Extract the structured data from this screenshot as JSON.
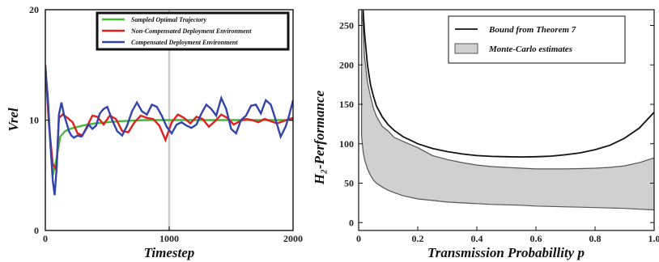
{
  "chart_data": [
    {
      "type": "line",
      "xlabel": "Timestep",
      "ylabel": "Vrel",
      "xlim": [
        0,
        2000
      ],
      "ylim": [
        0,
        20
      ],
      "x_ticks": [
        "0",
        "1000",
        "2000"
      ],
      "y_ticks": [
        "0",
        "10",
        "20"
      ],
      "grid": false,
      "reference_line_x": 1000,
      "legend": "top",
      "colors": {
        "optimal": "#44bb33",
        "noncomp": "#e02020",
        "comp": "#3344aa",
        "refline": "#cccccc"
      },
      "series": [
        {
          "name": "Sampled Optimal Trajectory",
          "x": [
            0,
            30,
            60,
            90,
            120,
            160,
            200,
            300,
            400,
            500,
            600,
            700,
            800,
            1000,
            1200,
            1400,
            1600,
            1800,
            2000
          ],
          "y": [
            15,
            9.5,
            5,
            6.5,
            8.5,
            9.0,
            9.2,
            9.5,
            9.7,
            9.8,
            9.9,
            9.95,
            10.0,
            10.0,
            10.0,
            10.0,
            10.0,
            10.0,
            10.0
          ]
        },
        {
          "name": "Non-Compensated Deployment Environment",
          "x": [
            0,
            30,
            60,
            90,
            110,
            140,
            180,
            220,
            260,
            300,
            340,
            380,
            420,
            470,
            520,
            570,
            620,
            670,
            720,
            770,
            820,
            870,
            920,
            970,
            1020,
            1070,
            1120,
            1170,
            1220,
            1270,
            1320,
            1370,
            1420,
            1470,
            1520,
            1570,
            1620,
            1670,
            1720,
            1770,
            1820,
            1870,
            1920,
            1970,
            2000
          ],
          "y": [
            15,
            9.5,
            6,
            5.5,
            10.2,
            10.5,
            10.2,
            9.8,
            8.8,
            8.6,
            9.5,
            10.4,
            10.3,
            9.6,
            10.4,
            10.1,
            9.0,
            8.9,
            9.8,
            10.4,
            10.2,
            10.1,
            9.5,
            8.2,
            9.8,
            10.5,
            10.2,
            9.7,
            10.3,
            10.1,
            9.4,
            9.9,
            10.5,
            10.2,
            9.6,
            9.9,
            10.1,
            10.0,
            9.8,
            10.1,
            9.9,
            9.7,
            9.9,
            10.1,
            10.2
          ]
        },
        {
          "name": "Compensated Deployment Environment",
          "x": [
            0,
            20,
            40,
            60,
            75,
            90,
            110,
            130,
            150,
            170,
            190,
            210,
            230,
            260,
            290,
            320,
            350,
            380,
            410,
            440,
            470,
            500,
            540,
            580,
            620,
            660,
            700,
            740,
            780,
            820,
            860,
            900,
            940,
            980,
            1020,
            1060,
            1100,
            1140,
            1180,
            1220,
            1260,
            1300,
            1340,
            1380,
            1420,
            1460,
            1500,
            1540,
            1580,
            1620,
            1660,
            1700,
            1740,
            1780,
            1820,
            1860,
            1900,
            1940,
            1970,
            2000
          ],
          "y": [
            14.8,
            12,
            8,
            4.5,
            3.2,
            5.5,
            10.5,
            11.6,
            10.5,
            9.8,
            9.0,
            8.6,
            8.4,
            8.6,
            8.5,
            9.0,
            9.6,
            9.2,
            9.5,
            10.6,
            11.0,
            11.2,
            10.0,
            9.0,
            8.6,
            9.5,
            10.8,
            11.6,
            10.8,
            10.5,
            11.4,
            11.2,
            10.4,
            9.4,
            8.8,
            9.6,
            9.8,
            9.5,
            9.3,
            9.6,
            10.6,
            11.4,
            11.0,
            10.4,
            12.0,
            11.0,
            9.2,
            8.8,
            10.0,
            10.4,
            11.3,
            11.4,
            10.6,
            11.8,
            11.4,
            10.0,
            8.5,
            9.4,
            10.5,
            11.8
          ]
        }
      ]
    },
    {
      "type": "area",
      "xlabel": "Transmission Probabillity p",
      "ylabel": "H₂-Performance",
      "xlim": [
        0,
        1
      ],
      "ylim": [
        -10,
        270
      ],
      "x_ticks": [
        "0",
        "0.2",
        "0.4",
        "0.6",
        "0.8",
        "1.0"
      ],
      "y_ticks": [
        "0",
        "50",
        "100",
        "150",
        "200",
        "250"
      ],
      "grid": false,
      "legend": "top-right",
      "colors": {
        "bound": "#111111",
        "band_fill": "#d0d0d0",
        "band_edge": "#555555"
      },
      "series": [
        {
          "name": "Bound from Theorem 7",
          "x": [
            0.015,
            0.02,
            0.03,
            0.04,
            0.05,
            0.06,
            0.08,
            0.1,
            0.12,
            0.15,
            0.2,
            0.25,
            0.3,
            0.35,
            0.4,
            0.45,
            0.5,
            0.55,
            0.6,
            0.65,
            0.7,
            0.75,
            0.8,
            0.85,
            0.9,
            0.95,
            1.0
          ],
          "y": [
            270,
            240,
            200,
            175,
            160,
            148,
            134,
            124,
            117,
            109,
            100,
            94,
            90,
            87,
            85,
            84,
            83.5,
            83.2,
            83.5,
            84.3,
            86,
            88.5,
            92.5,
            98,
            107,
            120,
            140
          ]
        },
        {
          "name": "Monte-Carlo estimates",
          "x": [
            0.01,
            0.015,
            0.02,
            0.03,
            0.04,
            0.05,
            0.06,
            0.08,
            0.1,
            0.12,
            0.15,
            0.2,
            0.25,
            0.3,
            0.35,
            0.4,
            0.45,
            0.5,
            0.55,
            0.6,
            0.65,
            0.7,
            0.75,
            0.8,
            0.85,
            0.9,
            0.95,
            1.0
          ],
          "upper": [
            270,
            250,
            210,
            178,
            160,
            145,
            135,
            122,
            116,
            108,
            103,
            95,
            85,
            80,
            76,
            73,
            71,
            70,
            69,
            68,
            68,
            68,
            68.5,
            69,
            70,
            72,
            76,
            82
          ],
          "lower": [
            110,
            90,
            80,
            68,
            60,
            54,
            50,
            45,
            41,
            38,
            34,
            30,
            28,
            26,
            25,
            24,
            23,
            22.5,
            22,
            21,
            20.5,
            20,
            19.5,
            19,
            18.5,
            18,
            17,
            16
          ]
        }
      ]
    }
  ]
}
